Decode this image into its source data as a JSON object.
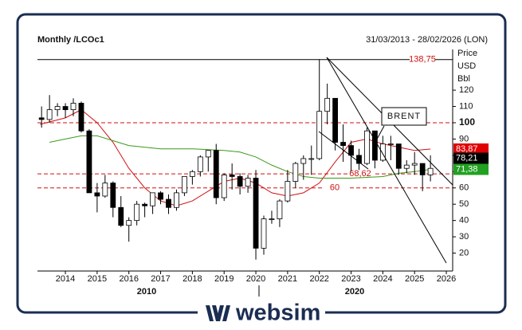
{
  "chart_data": {
    "type": "candlestick",
    "title": "Monthly /LCOc1",
    "date_range": "31/03/2013 - 28/02/2026 (LON)",
    "y_label": [
      "Price",
      "USD",
      "Bbl"
    ],
    "annotation": "BRENT",
    "decade_labels": [
      "2010",
      "2020"
    ],
    "brand": "websim",
    "xlim": [
      2013.12,
      2026.2
    ],
    "xticks": [
      2014,
      2015,
      2016,
      2017,
      2018,
      2019,
      2020,
      2021,
      2022,
      2023,
      2024,
      2025,
      2026
    ],
    "ylim": [
      9,
      145
    ],
    "yticks": [
      20,
      30,
      40,
      50,
      60,
      70,
      80,
      90,
      100,
      110,
      120
    ],
    "highlight_ytick": 100,
    "levels": [
      {
        "value": 138.75,
        "label": "138,75",
        "style": "solid"
      },
      {
        "value": 100,
        "style": "dashed"
      },
      {
        "value": 68.62,
        "label": "68,62",
        "style": "dashed"
      },
      {
        "value": 60,
        "label": "60",
        "style": "dashed"
      }
    ],
    "last_values": [
      {
        "value": 83.87,
        "label": "83,87",
        "color": "#e00000"
      },
      {
        "value": 78.21,
        "label": "78,21",
        "color": "#000000"
      },
      {
        "value": 71.38,
        "label": "71,38",
        "color": "#22a022"
      }
    ],
    "candles": {
      "x": [
        2013.25,
        2013.5,
        2013.75,
        2014.0,
        2014.25,
        2014.5,
        2014.75,
        2015.0,
        2015.25,
        2015.5,
        2015.75,
        2016.0,
        2016.25,
        2016.5,
        2016.75,
        2017.0,
        2017.25,
        2017.5,
        2017.75,
        2018.0,
        2018.25,
        2018.5,
        2018.75,
        2019.0,
        2019.25,
        2019.5,
        2019.75,
        2020.0,
        2020.25,
        2020.5,
        2020.75,
        2021.0,
        2021.25,
        2021.5,
        2021.75,
        2022.0,
        2022.25,
        2022.5,
        2022.75,
        2023.0,
        2023.25,
        2023.5,
        2023.75,
        2024.0,
        2024.25,
        2024.5,
        2024.75,
        2025.0,
        2025.25,
        2025.5
      ],
      "open": [
        103,
        102,
        108,
        110,
        108,
        112,
        95,
        57,
        55,
        63,
        48,
        37,
        40,
        50,
        49,
        57,
        53,
        48,
        57,
        67,
        70,
        79,
        83,
        54,
        68,
        67,
        61,
        66,
        23,
        41,
        41,
        52,
        64,
        75,
        78,
        78,
        107,
        115,
        88,
        86,
        80,
        75,
        95,
        77,
        87,
        87,
        72,
        74,
        75,
        68
      ],
      "high": [
        110,
        117,
        112,
        112,
        115,
        113,
        96,
        63,
        68,
        64,
        55,
        42,
        52,
        51,
        57,
        58,
        56,
        59,
        65,
        71,
        80,
        82,
        87,
        69,
        75,
        69,
        68,
        71,
        43,
        46,
        53,
        71,
        76,
        80,
        86,
        139,
        124,
        115,
        99,
        89,
        84,
        97,
        95,
        92,
        92,
        87,
        77,
        82,
        75,
        80
      ],
      "low": [
        97,
        100,
        104,
        103,
        104,
        94,
        57,
        45,
        54,
        42,
        36,
        27,
        37,
        42,
        44,
        50,
        44,
        46,
        55,
        62,
        67,
        70,
        50,
        52,
        59,
        56,
        57,
        16,
        19,
        38,
        36,
        51,
        60,
        65,
        68,
        77,
        99,
        83,
        76,
        70,
        71,
        74,
        72,
        76,
        77,
        68,
        69,
        68,
        58,
        64
      ],
      "close": [
        102,
        108,
        110,
        108,
        112,
        95,
        57,
        55,
        63,
        48,
        37,
        40,
        50,
        49,
        57,
        53,
        48,
        57,
        67,
        70,
        79,
        83,
        54,
        68,
        67,
        61,
        66,
        23,
        41,
        41,
        52,
        64,
        75,
        78,
        78,
        107,
        115,
        88,
        86,
        80,
        75,
        95,
        77,
        87,
        87,
        72,
        74,
        75,
        68,
        72
      ]
    },
    "moving_averages": [
      {
        "color": "#d01010",
        "x": [
          2013.2,
          2014.0,
          2014.5,
          2015.0,
          2015.5,
          2016.0,
          2016.5,
          2017.0,
          2017.5,
          2018.0,
          2018.5,
          2019.0,
          2019.5,
          2020.0,
          2020.5,
          2021.0,
          2021.5,
          2022.0,
          2022.5,
          2023.0,
          2023.5,
          2024.0,
          2024.5,
          2025.0,
          2025.5
        ],
        "values": [
          99,
          103,
          108,
          100,
          88,
          72,
          60,
          52,
          49,
          52,
          58,
          64,
          66,
          63,
          57,
          55,
          57,
          63,
          76,
          88,
          90,
          87,
          85,
          83,
          83.87
        ]
      },
      {
        "color": "#3a9a1a",
        "x": [
          2013.5,
          2014.0,
          2014.5,
          2015.0,
          2015.5,
          2016.0,
          2017.0,
          2018.0,
          2019.0,
          2019.5,
          2020.0,
          2020.5,
          2021.0,
          2021.5,
          2022.0,
          2022.5,
          2023.0,
          2024.0,
          2024.5,
          2025.0,
          2025.5
        ],
        "values": [
          88,
          90,
          92,
          92,
          89,
          86,
          84,
          84,
          83,
          82,
          79,
          74,
          70,
          67,
          66,
          66,
          66,
          67,
          69,
          70,
          71.38
        ]
      }
    ]
  }
}
